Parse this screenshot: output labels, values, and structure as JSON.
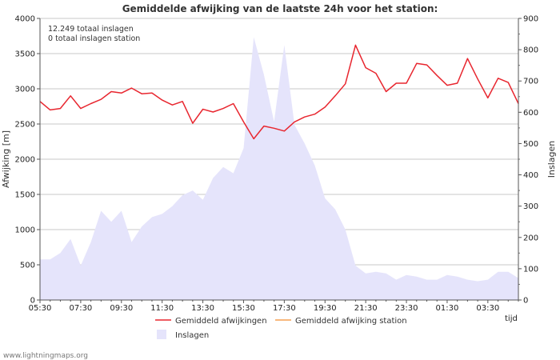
{
  "chart_data": {
    "type": "area+line",
    "title": "Gemiddelde afwijking van de laatste 24h voor het station:",
    "notes": [
      "12.249 totaal inslagen",
      "0 totaal inslagen station"
    ],
    "xlabel": "tijd",
    "ylabel": "Afwijking  [m]",
    "y2label": "Inslagen",
    "ylim": [
      0,
      4000
    ],
    "y2lim": [
      0,
      900
    ],
    "yticks": [
      "0",
      "500",
      "1000",
      "1500",
      "2000",
      "2500",
      "3000",
      "3500",
      "4000"
    ],
    "y2ticks": [
      "0",
      "100",
      "200",
      "300",
      "400",
      "500",
      "600",
      "700",
      "800",
      "900"
    ],
    "xticks": [
      "05:30",
      "07:30",
      "09:30",
      "11:30",
      "13:30",
      "15:30",
      "17:30",
      "19:30",
      "21:30",
      "23:30",
      "01:30",
      "03:30"
    ],
    "x_hours": [
      0,
      0.5,
      1,
      1.5,
      2,
      2.5,
      3,
      3.5,
      4,
      4.5,
      5,
      5.5,
      6,
      6.5,
      7,
      7.5,
      8,
      8.5,
      9,
      9.5,
      10,
      10.5,
      11,
      11.5,
      12,
      12.5,
      13,
      13.5,
      14,
      14.5,
      15,
      15.5,
      16,
      16.5,
      17,
      17.5,
      18,
      18.5,
      19,
      19.5,
      20,
      20.5,
      21,
      21.5,
      22,
      22.5,
      23,
      23.5
    ],
    "series": [
      {
        "name": "Gemiddeld afwijkingen",
        "axis": "left",
        "type": "line",
        "color": "#e8262f",
        "values": [
          2820,
          2700,
          2720,
          2900,
          2720,
          2790,
          2850,
          2960,
          2940,
          3010,
          2930,
          2940,
          2840,
          2770,
          2820,
          2510,
          2710,
          2670,
          2720,
          2790,
          2530,
          2290,
          2470,
          2440,
          2400,
          2530,
          2600,
          2640,
          2740,
          2900,
          3070,
          3620,
          3300,
          3220,
          2960,
          3080,
          3080,
          3360,
          3340,
          3190,
          3050,
          3080,
          3430,
          3140,
          2870,
          3150,
          3090,
          2790
        ]
      },
      {
        "name": "Gemiddeld afwijking station",
        "axis": "left",
        "type": "line",
        "color": "#f5a052",
        "values": []
      },
      {
        "name": "Inslagen",
        "axis": "right",
        "type": "area",
        "color": "#e5e4fb",
        "values": [
          130,
          130,
          150,
          195,
          110,
          185,
          285,
          250,
          285,
          185,
          235,
          265,
          275,
          300,
          335,
          350,
          320,
          390,
          425,
          405,
          485,
          840,
          720,
          570,
          815,
          560,
          500,
          430,
          325,
          290,
          225,
          110,
          85,
          90,
          85,
          65,
          80,
          75,
          65,
          65,
          80,
          75,
          65,
          60,
          65,
          90,
          90,
          70
        ]
      }
    ],
    "legend": [
      "Gemiddeld afwijkingen",
      "Gemiddeld afwijking station",
      "Inslagen"
    ]
  },
  "credit": "www.lightningmaps.org"
}
